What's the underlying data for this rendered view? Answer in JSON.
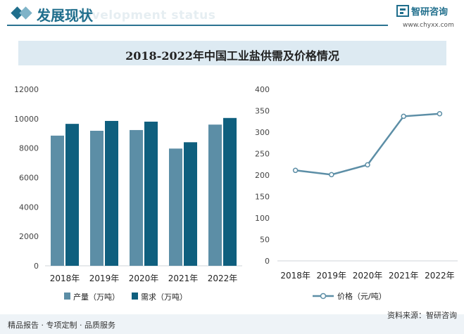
{
  "header": {
    "title": "发展现状",
    "subtitle": "Development status",
    "logo_name": "智研咨询",
    "logo_url": "www.chyxx.com"
  },
  "banner_title": "2018-2022年中国工业盐供需及价格情况",
  "footer": {
    "left": "精品报告 · 专项定制 · 品质服务",
    "right": "资料来源：智研咨询"
  },
  "colors": {
    "brand": "#1f6e8c",
    "series_production": "#5c8ea6",
    "series_demand": "#0f5f7e",
    "line_price": "#5c8ea6",
    "banner_bg": "#ddeaf2"
  },
  "chart_data": [
    {
      "type": "bar",
      "categories": [
        "2018年",
        "2019年",
        "2020年",
        "2021年",
        "2022年"
      ],
      "series": [
        {
          "name": "产量（万吨）",
          "values": [
            8850,
            9180,
            9230,
            7970,
            9600
          ]
        },
        {
          "name": "需求（万吨）",
          "values": [
            9650,
            9850,
            9800,
            8400,
            10050
          ]
        }
      ],
      "ylim": [
        0,
        12000
      ],
      "yticks": [
        "0",
        "2000",
        "4000",
        "6000",
        "8000",
        "10000",
        "12000"
      ],
      "legend": "bottom",
      "grid": false
    },
    {
      "type": "line",
      "categories": [
        "2018年",
        "2019年",
        "2020年",
        "2021年",
        "2022年"
      ],
      "series": [
        {
          "name": "价格（元/吨）",
          "values": [
            211,
            201,
            224,
            337,
            343
          ]
        }
      ],
      "ylim": [
        0,
        400
      ],
      "yticks": [
        "0",
        "50",
        "100",
        "150",
        "200",
        "250",
        "300",
        "350",
        "400"
      ],
      "legend": "bottom",
      "grid": false
    }
  ]
}
